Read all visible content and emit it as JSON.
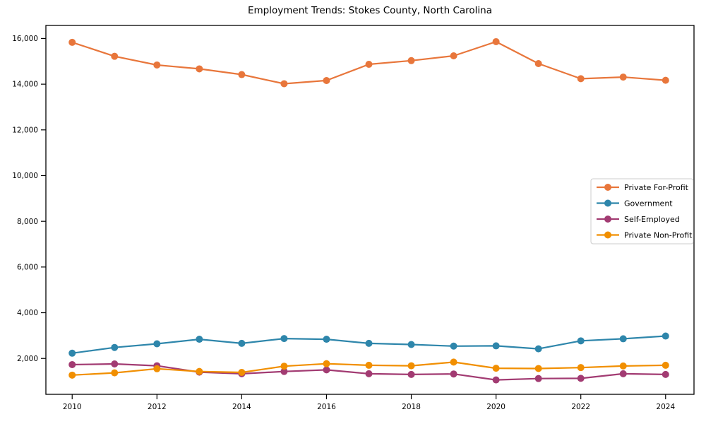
{
  "chart_data": {
    "type": "line",
    "title": "Employment Trends: Stokes County, North Carolina",
    "x": [
      2010,
      2011,
      2012,
      2013,
      2014,
      2015,
      2016,
      2017,
      2018,
      2019,
      2020,
      2021,
      2022,
      2023,
      2024
    ],
    "series": [
      {
        "name": "Private For-Profit",
        "color": "#E8763B",
        "values": [
          15830,
          15220,
          14840,
          14670,
          14420,
          14020,
          14160,
          14870,
          15030,
          15240,
          15860,
          14900,
          14240,
          14310,
          14170
        ]
      },
      {
        "name": "Government",
        "color": "#2E86AB",
        "values": [
          2230,
          2480,
          2640,
          2840,
          2660,
          2870,
          2840,
          2660,
          2610,
          2540,
          2550,
          2420,
          2770,
          2860,
          2980
        ]
      },
      {
        "name": "Self-Employed",
        "color": "#A23B72",
        "values": [
          1730,
          1760,
          1680,
          1400,
          1330,
          1430,
          1500,
          1330,
          1300,
          1320,
          1060,
          1120,
          1130,
          1330,
          1300
        ]
      },
      {
        "name": "Private Non-Profit",
        "color": "#F18F01",
        "values": [
          1270,
          1370,
          1550,
          1430,
          1390,
          1660,
          1770,
          1700,
          1680,
          1840,
          1570,
          1560,
          1600,
          1670,
          1700
        ]
      }
    ],
    "xtick_values": [
      2010,
      2012,
      2014,
      2016,
      2018,
      2020,
      2022,
      2024
    ],
    "xtick_labels": [
      "2010",
      "2012",
      "2014",
      "2016",
      "2018",
      "2020",
      "2022",
      "2024"
    ],
    "ytick_values": [
      2000,
      4000,
      6000,
      8000,
      10000,
      12000,
      14000,
      16000
    ],
    "ytick_labels": [
      "2,000",
      "4,000",
      "6,000",
      "8,000",
      "10,000",
      "12,000",
      "14,000",
      "16,000"
    ],
    "xlim": [
      2009.38,
      2024.67
    ],
    "ylim": [
      430,
      16570
    ],
    "grid": false,
    "legend_position": "center right",
    "axis_color": "#000000",
    "background_color": "#ffffff"
  }
}
